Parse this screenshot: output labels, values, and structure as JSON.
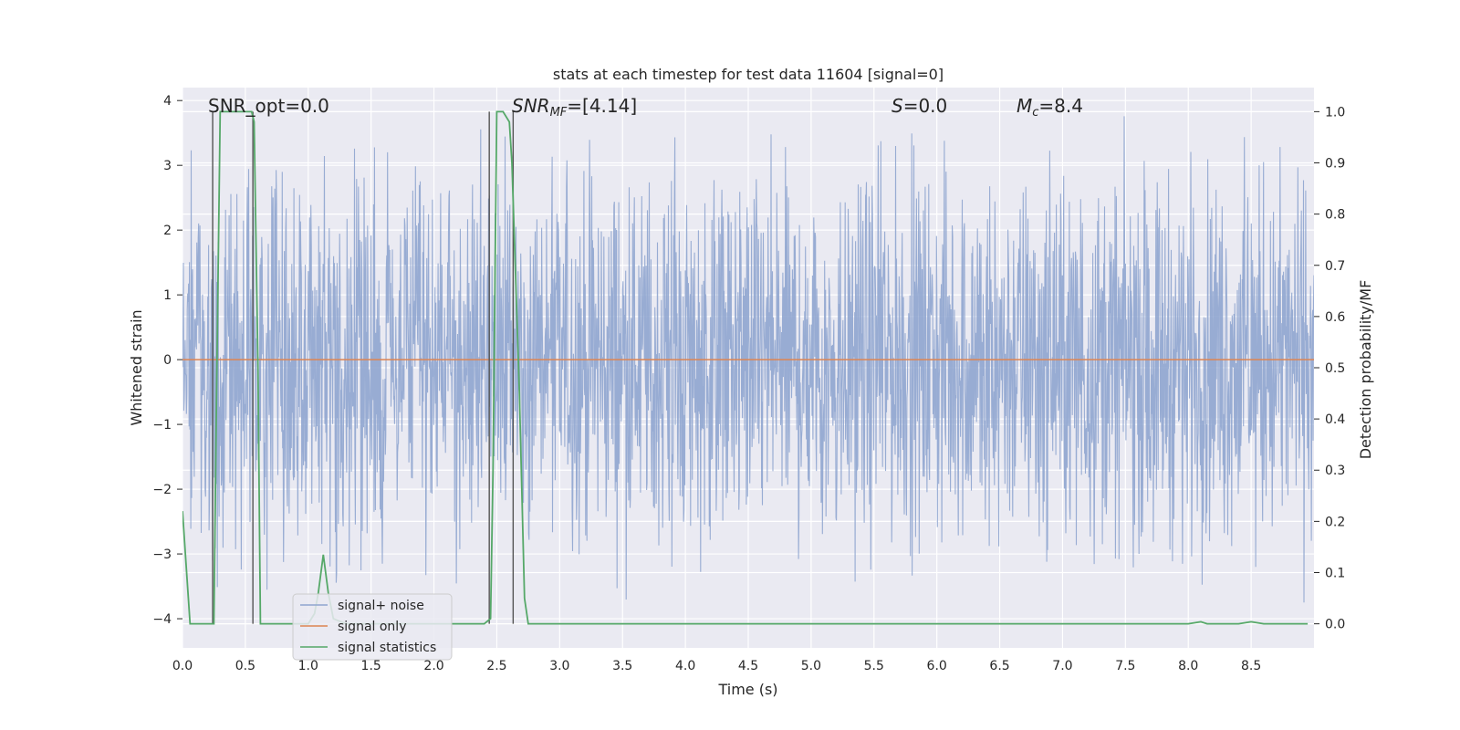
{
  "chart_data": {
    "type": "line",
    "title": "stats at each timestep for test data 11604 [signal=0]",
    "xlabel": "Time (s)",
    "ylabel": "Whitened strain",
    "y2label": "Detection probability/MF",
    "xlim": [
      0.0,
      9.0
    ],
    "ylim": [
      -4.45,
      4.2
    ],
    "y2lim": [
      -0.047,
      1.047
    ],
    "x_ticks": [
      "0.0",
      "0.5",
      "1.0",
      "1.5",
      "2.0",
      "2.5",
      "3.0",
      "3.5",
      "4.0",
      "4.5",
      "5.0",
      "5.5",
      "6.0",
      "6.5",
      "7.0",
      "7.5",
      "8.0",
      "8.5"
    ],
    "y_ticks": [
      "4",
      "3",
      "2",
      "1",
      "0",
      "−1",
      "−2",
      "−3",
      "−4"
    ],
    "y2_ticks": [
      "1.0",
      "0.9",
      "0.8",
      "0.7",
      "0.6",
      "0.5",
      "0.4",
      "0.3",
      "0.2",
      "0.1",
      "0.0"
    ],
    "grid": true,
    "legend_position": "lower-left",
    "annotations": {
      "snr_opt": "SNR_opt=0.0",
      "snr_mf_base": "SNR",
      "snr_mf_sub": "MF",
      "snr_mf_value": "=[4.14]",
      "s_label": "S",
      "s_value": "=0.0",
      "mc_base": "M",
      "mc_sub": "c",
      "mc_value": "=8.4"
    },
    "markers_x": [
      0.24,
      0.56,
      2.44,
      2.63
    ],
    "series": [
      {
        "name": "signal+ noise",
        "color": "#8fa5cf",
        "description_envelope": {
          "typical_abs": 1.6,
          "max": 3.85,
          "min": -4.0
        }
      },
      {
        "name": "signal only",
        "color": "#dd8452",
        "x": [
          0.0,
          9.0
        ],
        "y": [
          0.0,
          0.0
        ]
      },
      {
        "name": "signal statistics",
        "color": "#55a868",
        "axis": "right",
        "x": [
          0.0,
          0.06,
          0.18,
          0.22,
          0.25,
          0.27,
          0.3,
          0.35,
          0.45,
          0.55,
          0.57,
          0.6,
          0.62,
          0.7,
          0.8,
          0.9,
          1.0,
          1.05,
          1.08,
          1.12,
          1.16,
          1.2,
          1.3,
          1.5,
          2.0,
          2.3,
          2.4,
          2.45,
          2.47,
          2.5,
          2.55,
          2.6,
          2.62,
          2.68,
          2.72,
          2.75,
          3.0,
          5.0,
          8.0,
          8.1,
          8.15,
          8.2,
          8.4,
          8.5,
          8.6,
          8.95
        ],
        "y": [
          0.22,
          0.0,
          0.0,
          0.0,
          0.0,
          0.43,
          1.0,
          1.0,
          1.0,
          1.0,
          0.98,
          0.5,
          0.0,
          0.0,
          0.0,
          0.0,
          0.0,
          0.02,
          0.06,
          0.135,
          0.06,
          0.01,
          0.0,
          0.0,
          0.0,
          0.0,
          0.0,
          0.01,
          0.3,
          1.0,
          1.0,
          0.98,
          0.9,
          0.45,
          0.05,
          0.0,
          0.0,
          0.0,
          0.0,
          0.004,
          0.0,
          0.0,
          0.0,
          0.004,
          0.0,
          0.0
        ]
      }
    ]
  }
}
